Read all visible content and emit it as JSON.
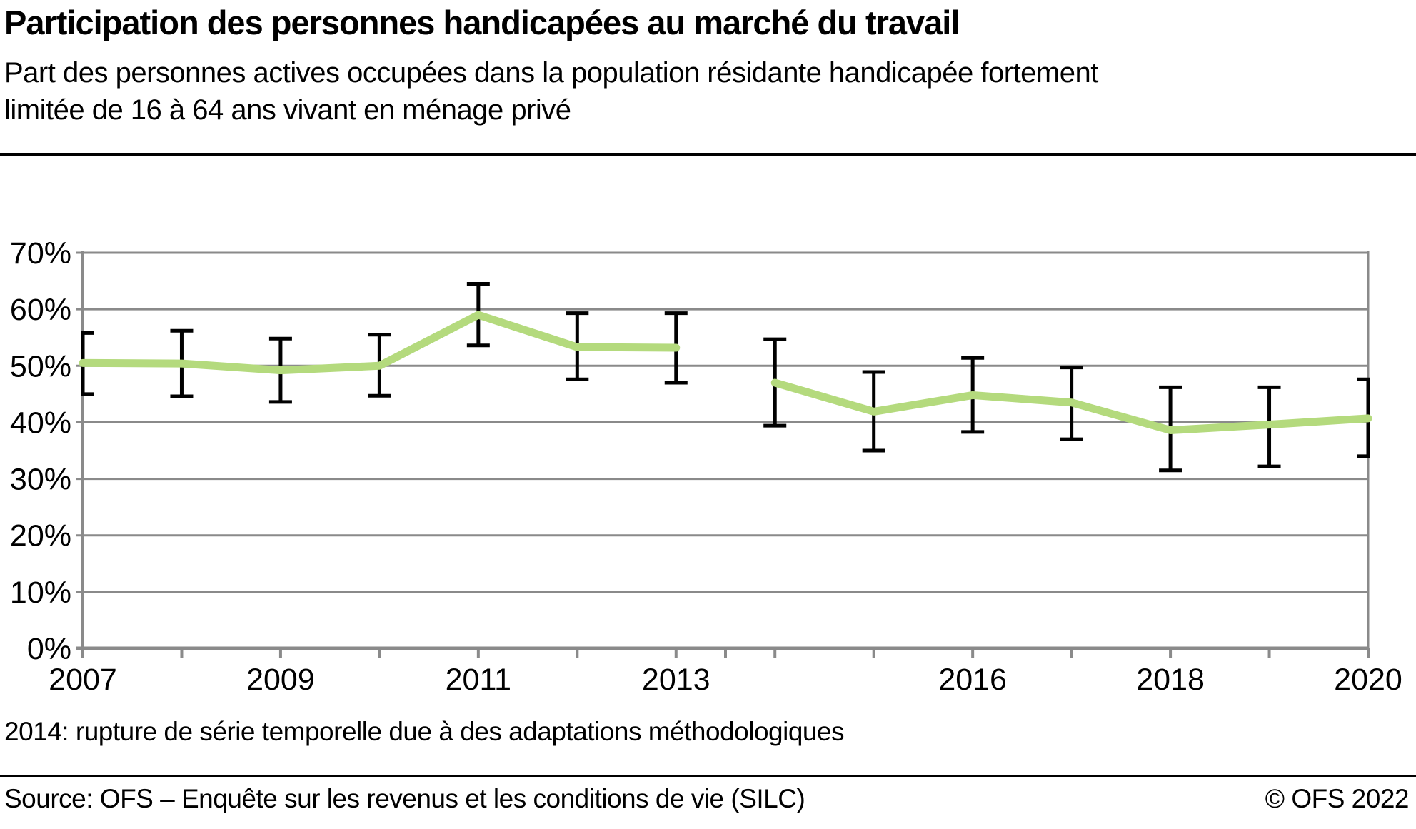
{
  "header": {
    "title": "Participation des personnes handicapées au marché du travail",
    "subtitle_line1": "Part des personnes actives occupées dans la population résidante handicapée fortement",
    "subtitle_line2": "limitée de 16 à 64 ans vivant en ménage privé"
  },
  "footnote": "2014: rupture de série temporelle due à des adaptations méthodologiques",
  "footer": {
    "source": "Source: OFS – Enquête sur les revenus et les conditions de vie (SILC)",
    "copyright": "© OFS 2022"
  },
  "colors": {
    "series_line": "#b4da7d",
    "grid": "#8a8a8a",
    "error_bar": "#000000",
    "text": "#000000"
  },
  "chart_data": {
    "type": "line",
    "title": "Participation des personnes handicapées au marché du travail",
    "xlabel": "",
    "ylabel": "",
    "x": [
      2007,
      2008,
      2009,
      2010,
      2011,
      2012,
      2013,
      2014,
      2015,
      2016,
      2017,
      2018,
      2019,
      2020
    ],
    "series": [
      {
        "name": "Part des personnes actives occupées (handicap fort, 16–64 ans)",
        "values": [
          50.5,
          50.4,
          49.2,
          50.0,
          59.0,
          53.3,
          53.2,
          47.0,
          41.9,
          44.8,
          43.5,
          38.6,
          39.6,
          40.7
        ]
      }
    ],
    "error_low": [
      45.0,
      44.6,
      43.6,
      44.7,
      53.6,
      47.6,
      47.0,
      39.4,
      35.0,
      38.3,
      37.0,
      31.5,
      32.2,
      34.0
    ],
    "error_high": [
      55.8,
      56.2,
      54.8,
      55.5,
      64.5,
      59.3,
      59.3,
      54.7,
      48.9,
      51.4,
      49.7,
      46.2,
      46.2,
      47.6
    ],
    "ylim": [
      0,
      70
    ],
    "y_ticks": [
      0,
      10,
      20,
      30,
      40,
      50,
      60,
      70
    ],
    "y_tick_suffix": "%",
    "x_labeled_years": [
      2007,
      2009,
      2011,
      2013,
      2016,
      2018,
      2020
    ],
    "series_break_after_index": 6,
    "grid": true,
    "legend": false,
    "error_bars": true
  }
}
